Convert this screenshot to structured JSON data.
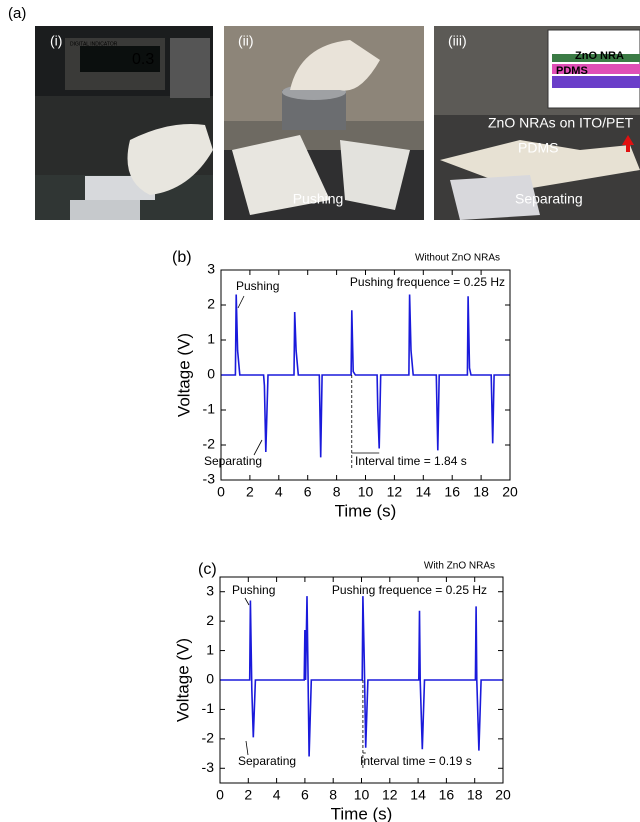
{
  "panel_a": {
    "label": "(a)",
    "photos": [
      {
        "label": "(i)",
        "device": "DIGITAL INDICATOR",
        "reading": "0.3"
      },
      {
        "label": "(ii)",
        "caption": "Pushing"
      },
      {
        "label": "(iii)",
        "inset_top": "ZnO NRA",
        "inset_bottom": "PDMS",
        "top_layer": "ZnO NRAs on ITO/PET",
        "bottom_layer": "PDMS",
        "caption": "Separating"
      }
    ]
  },
  "chart_data": [
    {
      "type": "line",
      "panel": "(b)",
      "title": "Without ZnO NRAs",
      "xlabel": "Time (s)",
      "ylabel": "Voltage (V)",
      "color": "#1a1adb",
      "annotations": [
        "Pushing",
        "Separating",
        "Pushing frequence = 0.25 Hz",
        "Interval time = 1.84 s"
      ],
      "x": [
        0,
        1.0,
        1.05,
        1.15,
        1.3,
        2.95,
        3.0,
        3.1,
        3.25,
        5.05,
        5.1,
        5.2,
        5.35,
        6.8,
        6.9,
        7.0,
        9.0,
        9.05,
        9.15,
        9.3,
        10.8,
        10.85,
        10.95,
        11.05,
        13.0,
        13.05,
        13.15,
        13.3,
        14.9,
        15.0,
        15.1,
        17.05,
        17.1,
        17.2,
        17.3,
        18.7,
        18.8,
        18.9,
        20
      ],
      "values": [
        0,
        0,
        2.3,
        0.7,
        0,
        0,
        -0.3,
        -2.2,
        0,
        0,
        1.8,
        0.7,
        0,
        0,
        -2.35,
        0,
        0,
        1.85,
        0.1,
        0,
        0,
        -1.0,
        -2.1,
        0,
        0,
        2.3,
        0.7,
        0,
        0,
        -2.15,
        0,
        0,
        2.25,
        0.2,
        0,
        0,
        -1.95,
        0,
        0
      ],
      "xlim": [
        0,
        20
      ],
      "xticks": [
        0,
        2,
        4,
        6,
        8,
        10,
        12,
        14,
        16,
        18,
        20
      ],
      "ylim": [
        -3,
        3
      ],
      "yticks": [
        -3,
        -2,
        -1,
        0,
        1,
        2,
        3
      ]
    },
    {
      "type": "line",
      "panel": "(c)",
      "title": "With ZnO NRAs",
      "xlabel": "Time (s)",
      "ylabel": "Voltage (V)",
      "color": "#1a1adb",
      "annotations": [
        "Pushing",
        "Separating",
        "Pushing frequence = 0.25 Hz",
        "Interval time = 0.19 s"
      ],
      "x": [
        0,
        2.1,
        2.15,
        2.25,
        2.35,
        2.5,
        5.95,
        6.0,
        6.05,
        6.15,
        6.3,
        6.45,
        10.05,
        10.1,
        10.2,
        10.3,
        10.45,
        14.05,
        14.1,
        14.15,
        14.3,
        14.45,
        18.05,
        18.1,
        18.15,
        18.3,
        18.45,
        20
      ],
      "values": [
        0,
        0,
        2.7,
        -0.3,
        -1.95,
        0,
        0,
        1.7,
        0,
        2.85,
        -2.6,
        0,
        0,
        2.85,
        0.6,
        -2.3,
        0,
        0,
        2.35,
        0,
        -2.35,
        0,
        0,
        2.5,
        0,
        -2.4,
        0,
        0
      ],
      "xlim": [
        0,
        20
      ],
      "xticks": [
        0,
        2,
        4,
        6,
        8,
        10,
        12,
        14,
        16,
        18,
        20
      ],
      "ylim": [
        -3.5,
        3.5
      ],
      "yticks": [
        -3,
        -2,
        -1,
        0,
        1,
        2,
        3
      ]
    }
  ]
}
